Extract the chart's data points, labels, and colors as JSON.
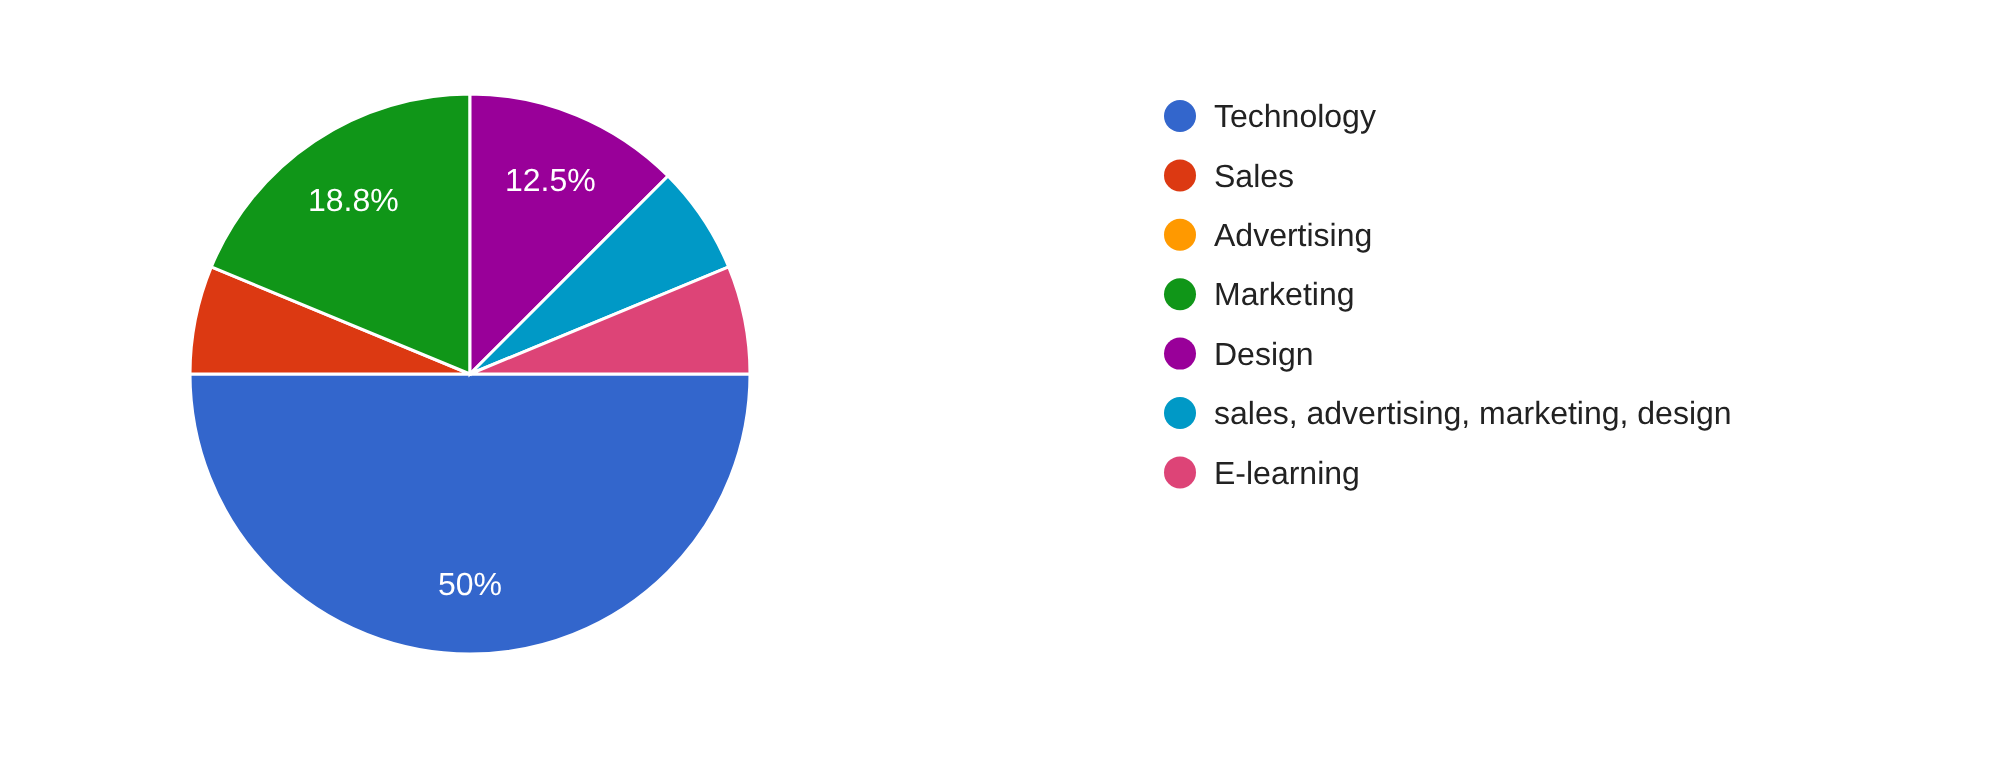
{
  "chart_data": {
    "type": "pie",
    "categories": [
      "Technology",
      "Sales",
      "Advertising",
      "Marketing",
      "Design",
      "sales, advertising, marketing, design",
      "E-learning"
    ],
    "values": [
      50,
      6.25,
      0,
      18.75,
      12.5,
      6.25,
      6.25
    ],
    "colors": [
      "#3366cc",
      "#dc3912",
      "#ff9900",
      "#109618",
      "#990099",
      "#0099c6",
      "#dd4477"
    ],
    "value_labels": [
      "50%",
      null,
      null,
      "18.8%",
      "12.5%",
      null,
      null
    ],
    "legend": "right"
  }
}
